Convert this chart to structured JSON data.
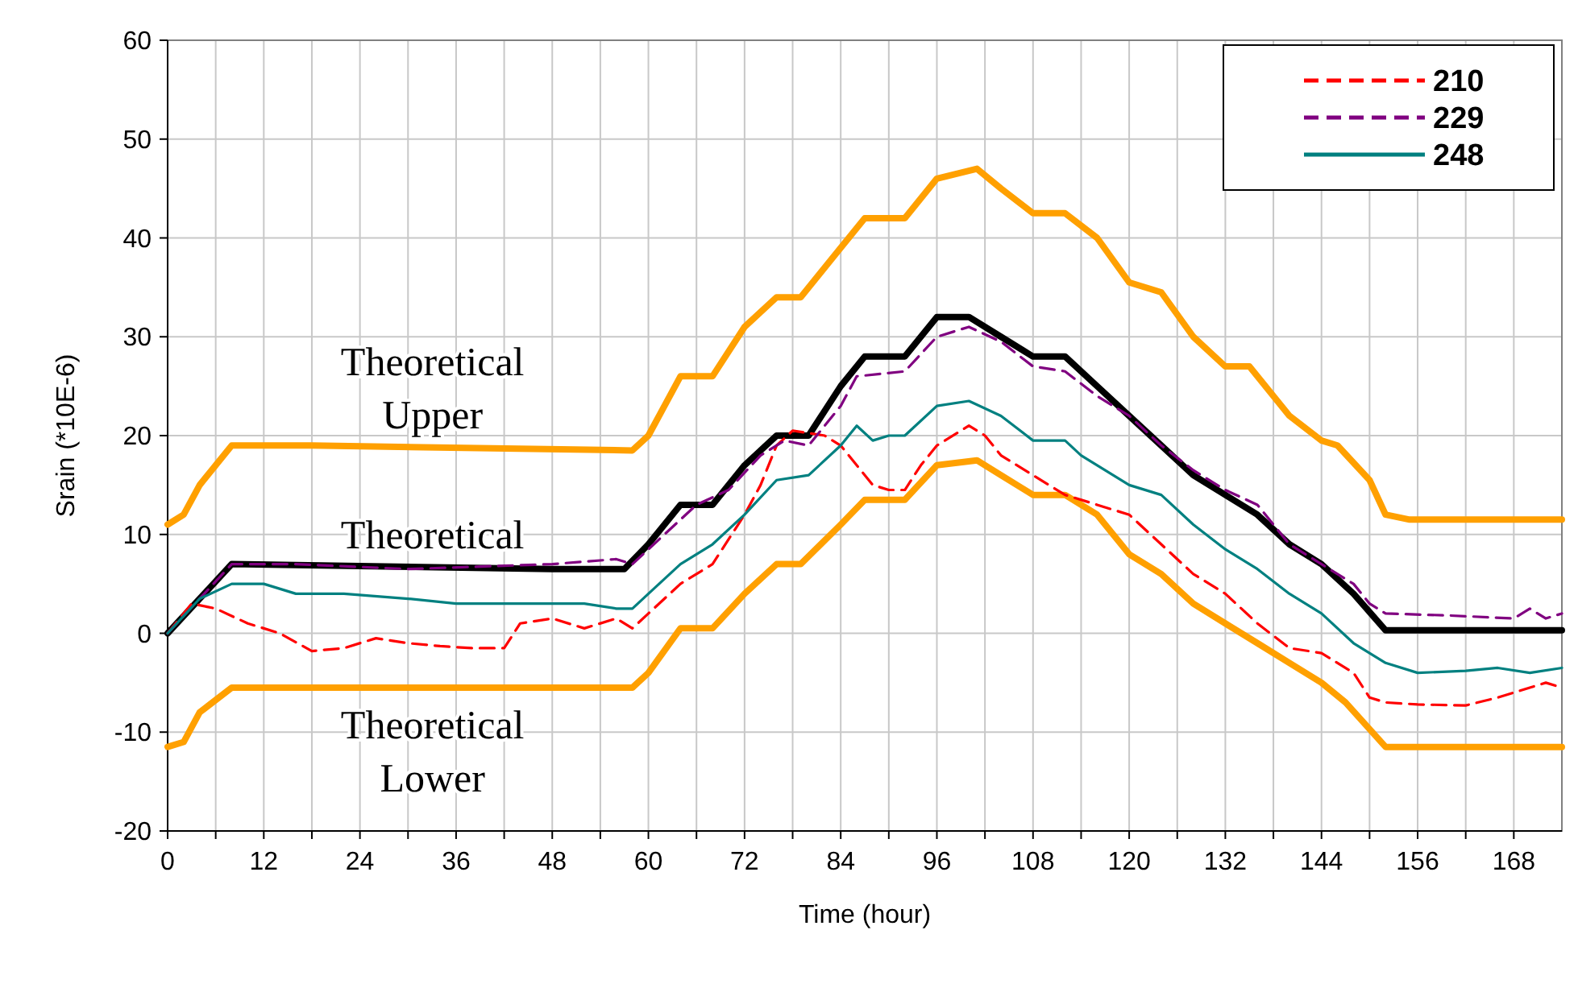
{
  "chart_data": {
    "type": "line",
    "xlabel": "Time (hour)",
    "ylabel": "Srain (*10E-6)",
    "xlim": [
      0,
      174
    ],
    "ylim": [
      -20,
      60
    ],
    "xticks": [
      0,
      {
        "value": 6,
        "label": null
      },
      12,
      {
        "value": 18,
        "label": null
      },
      24,
      {
        "value": 30,
        "label": null
      },
      36,
      {
        "value": 42,
        "label": null
      },
      48,
      {
        "value": 54,
        "label": null
      },
      60,
      {
        "value": 66,
        "label": null
      },
      72,
      {
        "value": 78,
        "label": null
      },
      84,
      {
        "value": 90,
        "label": null
      },
      96,
      {
        "value": 102,
        "label": null
      },
      108,
      {
        "value": 114,
        "label": null
      },
      120,
      {
        "value": 126,
        "label": null
      },
      132,
      {
        "value": 138,
        "label": null
      },
      144,
      {
        "value": 150,
        "label": null
      },
      156,
      {
        "value": 162,
        "label": null
      },
      168
    ],
    "yticks": [
      -20,
      -10,
      0,
      10,
      20,
      30,
      40,
      50,
      60
    ],
    "grid": true,
    "legend": "top right",
    "series": [
      {
        "color": "#ffa000",
        "line_style": "solid",
        "x": [
          0,
          2,
          4,
          8,
          18,
          58,
          60,
          64,
          68,
          72,
          76,
          79,
          84,
          87,
          92,
          96,
          101,
          104,
          108,
          112,
          116,
          120,
          124,
          128,
          132,
          135,
          140,
          144,
          146,
          150,
          152,
          155,
          174
        ],
        "values": [
          11,
          12,
          15,
          19,
          19,
          18.5,
          20,
          26,
          26,
          31,
          34,
          34,
          39,
          42,
          42,
          46,
          47,
          45,
          42.5,
          42.5,
          40,
          35.5,
          34.5,
          30,
          27,
          27,
          22,
          19.5,
          19,
          15.5,
          12,
          11.5,
          11.5
        ]
      },
      {
        "color": "#000000",
        "line_style": "solid",
        "x": [
          0,
          8,
          48,
          57,
          60,
          64,
          68,
          72,
          76,
          80,
          84,
          87,
          92,
          96,
          100,
          104,
          108,
          112,
          116,
          120,
          124,
          128,
          132,
          136,
          140,
          144,
          148,
          152,
          174
        ],
        "values": [
          0,
          7,
          6.5,
          6.5,
          9,
          13,
          13,
          17,
          20,
          20,
          25,
          28,
          28,
          32,
          32,
          30,
          28,
          28,
          25,
          22,
          19,
          16,
          14,
          12,
          9,
          7,
          4,
          0.3,
          0.3
        ]
      },
      {
        "color": "#ffa000",
        "line_style": "solid",
        "x": [
          0,
          2,
          4,
          8,
          58,
          60,
          64,
          68,
          72,
          76,
          79,
          84,
          87,
          92,
          96,
          101,
          104,
          108,
          112,
          116,
          120,
          124,
          128,
          132,
          136,
          140,
          144,
          147,
          152,
          174
        ],
        "values": [
          -11.5,
          -11,
          -8,
          -5.5,
          -5.5,
          -4,
          0.5,
          0.5,
          4,
          7,
          7,
          11,
          13.5,
          13.5,
          17,
          17.5,
          16,
          14,
          14,
          12,
          8,
          6,
          3,
          1,
          -1,
          -3,
          -5,
          -7,
          -11.5,
          -11.5
        ]
      },
      {
        "name": "210",
        "color": "#ff0000",
        "line_style": "dashed",
        "x": [
          0,
          3,
          6,
          10,
          14,
          18,
          22,
          26,
          30,
          34,
          38,
          42,
          44,
          48,
          52,
          56,
          58,
          60,
          64,
          68,
          72,
          74,
          76,
          78,
          82,
          84,
          88,
          90,
          92,
          94,
          96,
          100,
          102,
          104,
          108,
          112,
          116,
          120,
          124,
          128,
          132,
          136,
          140,
          144,
          148,
          150,
          152,
          156,
          162,
          166,
          170,
          172,
          174
        ],
        "values": [
          0,
          3,
          2.5,
          1,
          0,
          -1.8,
          -1.5,
          -0.5,
          -1,
          -1.3,
          -1.5,
          -1.5,
          1,
          1.5,
          0.5,
          1.5,
          0.5,
          2,
          5,
          7,
          12,
          15,
          19,
          20.5,
          20,
          19,
          15,
          14.5,
          14.5,
          17,
          19,
          21,
          20,
          18,
          16,
          14,
          13,
          12,
          9,
          6,
          4,
          1,
          -1.5,
          -2,
          -4,
          -6.5,
          -7,
          -7.2,
          -7.3,
          -6.5,
          -5.5,
          -5,
          -5.5
        ]
      },
      {
        "name": "229",
        "color": "#800080",
        "line_style": "dashed",
        "x": [
          0,
          8,
          16,
          30,
          48,
          56,
          58,
          62,
          66,
          70,
          74,
          77,
          80,
          84,
          86,
          92,
          96,
          100,
          104,
          108,
          112,
          116,
          120,
          124,
          128,
          132,
          136,
          140,
          144,
          148,
          150,
          152,
          160,
          168,
          170,
          172,
          174
        ],
        "values": [
          0,
          7,
          7,
          6.5,
          7,
          7.5,
          7,
          10,
          13,
          14.5,
          18,
          19.5,
          19,
          23,
          26,
          26.5,
          30,
          31,
          29.5,
          27,
          26.5,
          24,
          22,
          19,
          16.5,
          14.5,
          13,
          9,
          7,
          5,
          3,
          2,
          1.8,
          1.5,
          2.5,
          1.5,
          2
        ]
      },
      {
        "name": "248",
        "color": "#008080",
        "line_style": "solid",
        "x": [
          0,
          4,
          8,
          12,
          16,
          22,
          30,
          36,
          44,
          52,
          56,
          58,
          60,
          64,
          68,
          72,
          76,
          80,
          84,
          86,
          88,
          90,
          92,
          96,
          100,
          104,
          108,
          112,
          114,
          120,
          124,
          128,
          132,
          136,
          140,
          144,
          148,
          152,
          156,
          162,
          166,
          170,
          174
        ],
        "values": [
          0,
          3.5,
          5,
          5,
          4,
          4,
          3.5,
          3,
          3,
          3,
          2.5,
          2.5,
          4,
          7,
          9,
          12,
          15.5,
          16,
          19,
          21,
          19.5,
          20,
          20,
          23,
          23.5,
          22,
          19.5,
          19.5,
          18,
          15,
          14,
          11,
          8.5,
          6.5,
          4,
          2,
          -1,
          -3,
          -4,
          -3.8,
          -3.5,
          -4,
          -3.5
        ]
      }
    ],
    "annotations": [
      "Theoretical\nUpper",
      "Theoretical",
      "Theoretical\nLower"
    ]
  }
}
